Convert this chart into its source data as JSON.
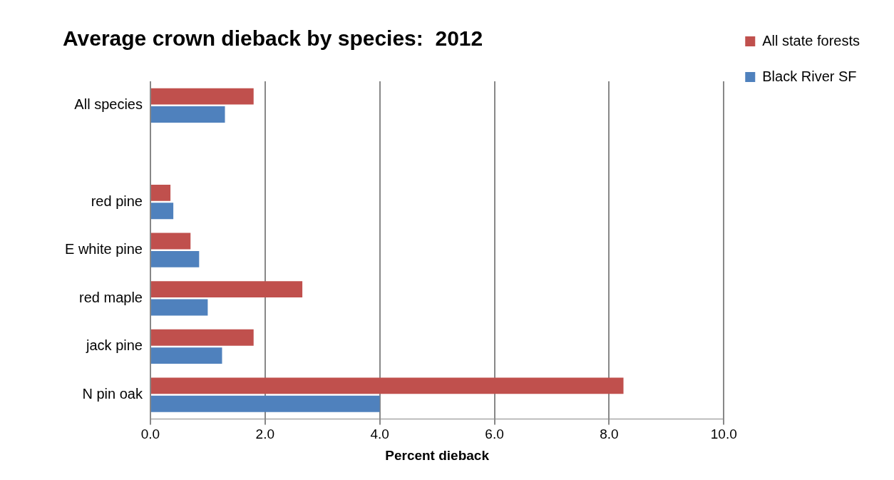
{
  "chart_data": {
    "type": "bar",
    "orientation": "horizontal",
    "title": "Average crown dieback by species:  2012",
    "xlabel": "Percent dieback",
    "categories": [
      "All species",
      null,
      "red pine",
      "E white pine",
      "red maple",
      "jack pine",
      "N pin oak"
    ],
    "series": [
      {
        "name": "All state forests",
        "color": "#c0504d",
        "values": [
          1.8,
          null,
          0.35,
          0.7,
          2.65,
          1.8,
          8.25
        ]
      },
      {
        "name": "Black River SF",
        "color": "#4f81bd",
        "values": [
          1.3,
          null,
          0.4,
          0.85,
          1.0,
          1.25,
          4.0
        ]
      }
    ],
    "xlim": [
      0,
      10
    ],
    "xticks": [
      {
        "value": 0,
        "label": "0.0"
      },
      {
        "value": 2,
        "label": "2.0"
      },
      {
        "value": 4,
        "label": "4.0"
      },
      {
        "value": 6,
        "label": "6.0"
      },
      {
        "value": 8,
        "label": "8.0"
      },
      {
        "value": 10,
        "label": "10.0"
      }
    ],
    "grid": "x",
    "legend": "right"
  }
}
